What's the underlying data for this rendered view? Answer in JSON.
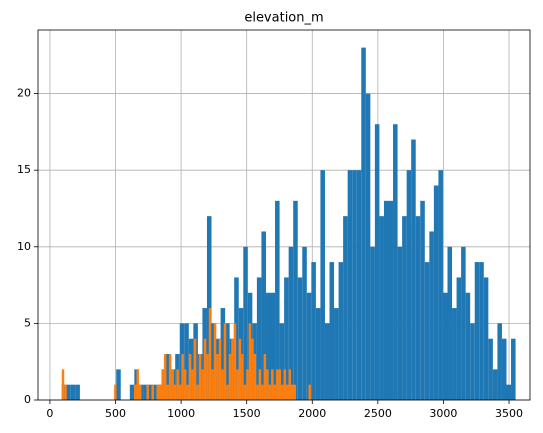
{
  "chart_data": {
    "type": "histogram",
    "title": "elevation_m",
    "series": [
      {
        "color": "#1f77b4",
        "bins": [
          90,
          124.6,
          159.2,
          193.8,
          228.4,
          263,
          297.6,
          332.2,
          366.8,
          401.4,
          436,
          470.6,
          505.2,
          539.8,
          574.4,
          609,
          643.6,
          678.2,
          712.8,
          747.4,
          782,
          816.6,
          851.2,
          885.8,
          920.4,
          955,
          989.6,
          1024.2,
          1058.8,
          1093.4,
          1128,
          1162.6,
          1197.2,
          1231.8,
          1266.4,
          1301,
          1335.6,
          1370.2,
          1404.8,
          1439.4,
          1474,
          1508.6,
          1543.2,
          1577.8,
          1612.4,
          1647,
          1681.6,
          1716.2,
          1750.8,
          1785.4,
          1820,
          1854.6,
          1889.2,
          1923.8,
          1958.4,
          1993,
          2027.6,
          2062.2,
          2096.8,
          2131.4,
          2166,
          2200.6,
          2235.2,
          2269.8,
          2304.4,
          2339,
          2373.6,
          2408.2,
          2442.8,
          2477.4,
          2512,
          2546.6,
          2581.2,
          2615.8,
          2650.4,
          2685,
          2719.6,
          2754.2,
          2788.8,
          2823.4,
          2858,
          2892.6,
          2927.2,
          2961.8,
          2996.4,
          3031,
          3065.6,
          3100.2,
          3134.8,
          3169.4,
          3204,
          3238.6,
          3273.2,
          3307.8,
          3342.4,
          3377,
          3411.6,
          3446.2,
          3480.8,
          3515.4,
          3550
        ],
        "values": [
          1,
          1,
          1,
          1,
          0,
          0,
          0,
          0,
          0,
          0,
          0,
          0,
          2,
          0,
          0,
          1,
          2,
          1,
          1,
          1,
          1,
          1,
          2,
          3,
          2,
          3,
          5,
          5,
          4,
          5,
          3,
          6,
          12,
          5,
          4,
          6,
          5,
          4,
          8,
          6,
          10,
          7,
          5,
          8,
          11,
          7,
          7,
          13,
          5,
          8,
          10,
          13,
          8,
          10,
          7,
          9,
          6,
          15,
          5,
          9,
          6,
          9,
          12,
          15,
          15,
          15,
          23,
          20,
          10,
          18,
          12,
          13,
          13,
          18,
          10,
          12,
          15,
          17,
          12,
          13,
          9,
          11,
          14,
          15,
          7,
          10,
          6,
          8,
          10,
          7,
          5,
          9,
          9,
          8,
          4,
          2,
          5,
          4,
          1,
          4
        ]
      },
      {
        "color": "#ff7f0e",
        "bins": [
          90,
          109,
          128,
          147,
          166,
          185,
          204,
          223,
          242,
          261,
          280,
          299,
          318,
          337,
          356,
          375,
          394,
          413,
          432,
          451,
          470,
          489,
          508,
          527,
          546,
          565,
          584,
          603,
          622,
          641,
          660,
          679,
          698,
          717,
          736,
          755,
          774,
          793,
          812,
          831,
          850,
          869,
          888,
          907,
          926,
          945,
          964,
          983,
          1002,
          1021,
          1040,
          1059,
          1078,
          1097,
          1116,
          1135,
          1154,
          1173,
          1192,
          1211,
          1230,
          1249,
          1268,
          1287,
          1306,
          1325,
          1344,
          1363,
          1382,
          1401,
          1420,
          1439,
          1458,
          1477,
          1496,
          1515,
          1534,
          1553,
          1572,
          1591,
          1610,
          1629,
          1648,
          1667,
          1686,
          1705,
          1724,
          1743,
          1762,
          1781,
          1800,
          1819,
          1838,
          1857,
          1876,
          1895,
          1914,
          1933,
          1952,
          1971,
          1990
        ],
        "values": [
          2,
          1,
          0,
          0,
          0,
          0,
          0,
          0,
          0,
          0,
          0,
          0,
          0,
          0,
          0,
          0,
          0,
          0,
          0,
          0,
          0,
          1,
          0,
          0,
          0,
          0,
          0,
          0,
          0,
          1,
          2,
          1,
          0,
          0,
          1,
          0,
          1,
          0,
          1,
          1,
          2,
          3,
          1,
          3,
          2,
          1,
          2,
          1,
          3,
          2,
          1,
          3,
          2,
          4,
          1,
          3,
          2,
          4,
          3,
          6,
          2,
          5,
          3,
          4,
          2,
          5,
          1,
          3,
          4,
          5,
          2,
          4,
          3,
          1,
          2,
          5,
          4,
          3,
          1,
          2,
          1,
          3,
          2,
          1,
          2,
          1,
          2,
          2,
          1,
          2,
          1,
          2,
          1,
          1,
          0,
          0,
          0,
          0,
          0,
          1
        ]
      }
    ],
    "xlim": [
      -91,
      3660
    ],
    "xticks": [
      0,
      500,
      1000,
      1500,
      2000,
      2500,
      3000,
      3500
    ],
    "ylim": [
      0,
      24.15
    ],
    "yticks": [
      0,
      5,
      10,
      15,
      20
    ],
    "grid": true
  }
}
